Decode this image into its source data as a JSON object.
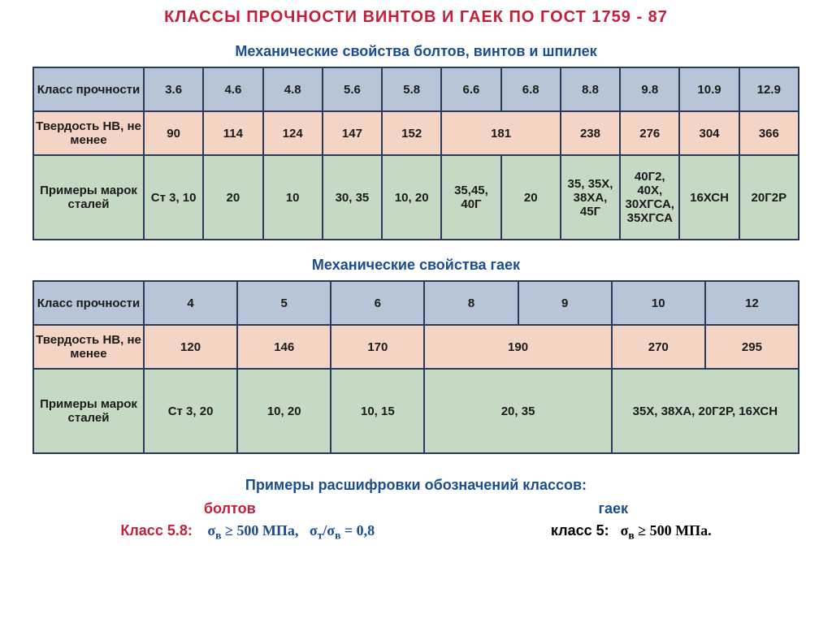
{
  "title": "КЛАССЫ  ПРОЧНОСТИ  ВИНТОВ  И  ГАЕК  ПО  ГОСТ 1759 - 87",
  "subtitle1": "Механические свойства болтов, винтов и шпилек",
  "subtitle2": "Механические свойства  гаек",
  "table1": {
    "row1_header": "Класс прочности",
    "row1_cells": [
      "3.6",
      "4.6",
      "4.8",
      "5.6",
      "5.8",
      "6.6",
      "6.8",
      "8.8",
      "9.8",
      "10.9",
      "12.9"
    ],
    "row2_header": "Твердость HB, не менее",
    "row2_cells": [
      "90",
      "114",
      "124",
      "147",
      "152",
      "181",
      "238",
      "276",
      "304",
      "366"
    ],
    "row2_spans": [
      1,
      1,
      1,
      1,
      1,
      2,
      1,
      1,
      1,
      1
    ],
    "row3_header": "Примеры марок сталей",
    "row3_cells": [
      "Ст 3, 10",
      "20",
      "10",
      "30, 35",
      "10, 20",
      "35,45, 40Г",
      "20",
      "35, 35X, 38XA, 45Г",
      "40Г2, 40X, 30ХГСА, 35ХГСА",
      "16ХСН",
      "20Г2Р"
    ]
  },
  "table2": {
    "row1_header": "Класс прочности",
    "row1_cells": [
      "4",
      "5",
      "6",
      "8",
      "9",
      "10",
      "12"
    ],
    "row2_header": "Твердость HB, не менее",
    "row2_cells": [
      "120",
      "146",
      "170",
      "190",
      "270",
      "295"
    ],
    "row2_spans": [
      1,
      1,
      1,
      2,
      1,
      1
    ],
    "row3_header": "Примеры марок сталей",
    "row3_cells": [
      "Ст 3, 20",
      "10, 20",
      "10, 15",
      "20, 35",
      "35X, 38XA, 20Г2Р, 16ХСН"
    ],
    "row3_spans": [
      1,
      1,
      1,
      2,
      2
    ]
  },
  "footer": {
    "title": "Примеры расшифровки обозначений классов:",
    "bolts_label": "болтов",
    "nuts_label": "гаек",
    "bolt_line_prefix": "Класс 5.8:",
    "bolt_formula1_a": "σ",
    "bolt_formula1_sub": "в",
    "bolt_formula1_b": " ≥ 500 МПа,",
    "bolt_formula2_a": "σ",
    "bolt_formula2_sub1": "т",
    "bolt_formula2_mid": "/σ",
    "bolt_formula2_sub2": "в",
    "bolt_formula2_b": " = 0,8",
    "nut_line_prefix": "класс 5:",
    "nut_formula_a": "σ",
    "nut_formula_sub": "в",
    "nut_formula_b": " ≥  500 МПа."
  },
  "colors": {
    "row_blue": "#b8c5d9",
    "row_peach": "#f4d5c5",
    "row_green": "#c5d9c5",
    "border": "#2a3a5a",
    "title_red": "#c41e3a",
    "title_blue": "#1a4d8f"
  }
}
